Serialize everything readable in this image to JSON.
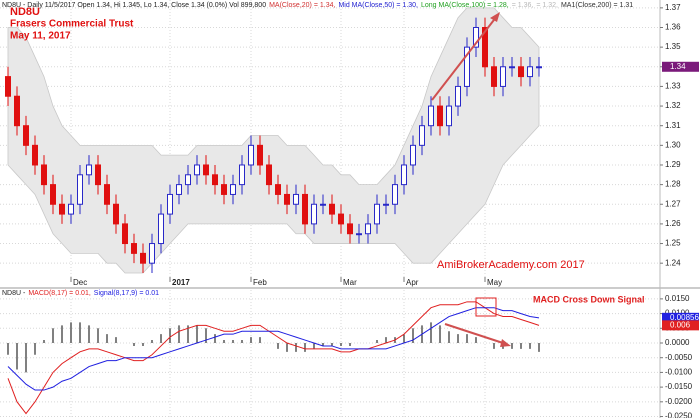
{
  "chart_data": [
    {
      "type": "candlestick",
      "title": "ND8U - Daily 11/5/2017 Open 1.34, Hi 1.345, Lo 1.34, Close 1.34 (0.0%) Vol 899,800",
      "header_items": [
        {
          "text": "MA(Close,20) = 1.34,",
          "color": "#d03030"
        },
        {
          "text": "Mid MA(Close,50) = 1.30,",
          "color": "#2020d0"
        },
        {
          "text": "Long MA(Close,100) = 1.28,",
          "color": "#20a020"
        },
        {
          "text": "= 1.36,",
          "color": "#b8b8b8"
        },
        {
          "text": "= 1.32,",
          "color": "#b8b8b8"
        },
        {
          "text": "MA1(Close,200) = 1.31",
          "color": "#303030"
        }
      ],
      "annotations": [
        {
          "text": "ND8U",
          "color": "#e01010"
        },
        {
          "text": "Frasers Commercial Trust",
          "color": "#e01010"
        },
        {
          "text": "May 11, 2017",
          "color": "#e01010"
        },
        {
          "text": "AmiBrokerAcademy.com  2017",
          "color": "#e01010"
        }
      ],
      "categories": [
        null,
        null,
        null,
        null,
        null,
        null,
        null,
        "Dec",
        null,
        null,
        null,
        null,
        null,
        null,
        null,
        null,
        null,
        null,
        "2017",
        null,
        null,
        null,
        null,
        null,
        null,
        null,
        null,
        "Feb",
        null,
        null,
        null,
        null,
        null,
        null,
        null,
        null,
        null,
        "Mar",
        null,
        null,
        null,
        null,
        null,
        null,
        "Apr",
        null,
        null,
        null,
        null,
        null,
        null,
        null,
        null,
        "May",
        null,
        null,
        null,
        null,
        null,
        null
      ],
      "open": [
        1.335,
        1.325,
        1.31,
        1.3,
        1.29,
        1.28,
        1.27,
        1.265,
        1.27,
        1.285,
        1.29,
        1.28,
        1.27,
        1.26,
        1.25,
        1.245,
        1.24,
        1.25,
        1.265,
        1.275,
        1.28,
        1.285,
        1.29,
        1.285,
        1.28,
        1.275,
        1.28,
        1.29,
        1.3,
        1.29,
        1.28,
        1.275,
        1.27,
        1.275,
        1.26,
        1.27,
        1.27,
        1.265,
        1.26,
        1.255,
        1.255,
        1.26,
        1.27,
        1.27,
        1.28,
        1.29,
        1.3,
        1.31,
        1.32,
        1.31,
        1.32,
        1.33,
        1.35,
        1.36,
        1.34,
        1.33,
        1.34,
        1.34,
        1.335,
        1.34
      ],
      "high": [
        1.34,
        1.33,
        1.315,
        1.305,
        1.295,
        1.285,
        1.275,
        1.275,
        1.29,
        1.295,
        1.295,
        1.285,
        1.275,
        1.265,
        1.255,
        1.25,
        1.255,
        1.27,
        1.28,
        1.285,
        1.29,
        1.295,
        1.295,
        1.29,
        1.285,
        1.285,
        1.295,
        1.305,
        1.305,
        1.295,
        1.285,
        1.28,
        1.28,
        1.28,
        1.275,
        1.275,
        1.275,
        1.27,
        1.265,
        1.26,
        1.265,
        1.275,
        1.275,
        1.285,
        1.295,
        1.305,
        1.315,
        1.325,
        1.325,
        1.325,
        1.335,
        1.355,
        1.365,
        1.365,
        1.345,
        1.345,
        1.345,
        1.345,
        1.345,
        1.345
      ],
      "low": [
        1.32,
        1.305,
        1.295,
        1.285,
        1.275,
        1.265,
        1.26,
        1.26,
        1.265,
        1.28,
        1.275,
        1.265,
        1.255,
        1.245,
        1.24,
        1.235,
        1.235,
        1.245,
        1.26,
        1.27,
        1.275,
        1.28,
        1.28,
        1.275,
        1.27,
        1.27,
        1.275,
        1.285,
        1.285,
        1.275,
        1.27,
        1.265,
        1.265,
        1.255,
        1.255,
        1.265,
        1.26,
        1.255,
        1.25,
        1.25,
        1.25,
        1.255,
        1.265,
        1.265,
        1.275,
        1.285,
        1.295,
        1.305,
        1.305,
        1.305,
        1.315,
        1.325,
        1.345,
        1.335,
        1.325,
        1.325,
        1.335,
        1.33,
        1.33,
        1.335
      ],
      "close": [
        1.325,
        1.31,
        1.3,
        1.29,
        1.28,
        1.27,
        1.265,
        1.27,
        1.285,
        1.29,
        1.28,
        1.27,
        1.26,
        1.25,
        1.245,
        1.24,
        1.25,
        1.265,
        1.275,
        1.28,
        1.285,
        1.29,
        1.285,
        1.28,
        1.275,
        1.28,
        1.29,
        1.3,
        1.29,
        1.28,
        1.275,
        1.27,
        1.275,
        1.26,
        1.27,
        1.27,
        1.265,
        1.26,
        1.255,
        1.255,
        1.26,
        1.27,
        1.27,
        1.28,
        1.29,
        1.3,
        1.31,
        1.32,
        1.31,
        1.32,
        1.33,
        1.35,
        1.36,
        1.34,
        1.33,
        1.34,
        1.34,
        1.335,
        1.34,
        1.34
      ],
      "up_color": "#2828c8",
      "down_color": "#e01010",
      "last_color": "#7a1a7a",
      "band": {
        "color": "#e8e8e8",
        "upper": [
          1.36,
          1.36,
          1.355,
          1.345,
          1.335,
          1.32,
          1.31,
          1.305,
          1.3,
          1.3,
          1.3,
          1.3,
          1.3,
          1.3,
          1.3,
          1.3,
          1.3,
          1.295,
          1.295,
          1.295,
          1.295,
          1.3,
          1.3,
          1.3,
          1.3,
          1.3,
          1.3,
          1.305,
          1.305,
          1.305,
          1.305,
          1.3,
          1.3,
          1.3,
          1.295,
          1.29,
          1.29,
          1.285,
          1.285,
          1.28,
          1.28,
          1.28,
          1.285,
          1.29,
          1.3,
          1.31,
          1.32,
          1.335,
          1.345,
          1.355,
          1.365,
          1.37,
          1.37,
          1.37,
          1.37,
          1.365,
          1.36,
          1.36,
          1.355,
          1.35
        ],
        "lower": [
          1.29,
          1.285,
          1.28,
          1.275,
          1.265,
          1.255,
          1.25,
          1.245,
          1.245,
          1.245,
          1.245,
          1.24,
          1.24,
          1.235,
          1.235,
          1.235,
          1.24,
          1.245,
          1.25,
          1.255,
          1.26,
          1.26,
          1.26,
          1.26,
          1.26,
          1.26,
          1.26,
          1.26,
          1.26,
          1.26,
          1.26,
          1.26,
          1.255,
          1.255,
          1.25,
          1.25,
          1.25,
          1.25,
          1.25,
          1.25,
          1.25,
          1.25,
          1.25,
          1.25,
          1.245,
          1.24,
          1.24,
          1.24,
          1.245,
          1.25,
          1.255,
          1.26,
          1.265,
          1.27,
          1.28,
          1.29,
          1.295,
          1.3,
          1.305,
          1.31
        ]
      },
      "ylim": [
        1.235,
        1.374
      ],
      "yticks": [
        1.24,
        1.25,
        1.26,
        1.27,
        1.28,
        1.29,
        {
          "value": 1.3,
          "label": "1.30"
        },
        1.31,
        1.32,
        1.33,
        1.34,
        1.35,
        1.36,
        1.37
      ],
      "grid": true
    },
    {
      "type": "macd",
      "title": "ND8U -",
      "series": [
        {
          "name": "MACD(8,17) = 0.01,",
          "color": "#e02020",
          "values": [
            -0.012,
            -0.02,
            -0.024,
            -0.02,
            -0.015,
            -0.01,
            -0.007,
            -0.005,
            -0.003,
            -0.002,
            -0.002,
            -0.003,
            -0.004,
            -0.005,
            -0.006,
            -0.006,
            -0.004,
            -0.001,
            0.002,
            0.004,
            0.005,
            0.006,
            0.006,
            0.005,
            0.004,
            0.004,
            0.005,
            0.006,
            0.006,
            0.004,
            0.002,
            0,
            -0.001,
            -0.002,
            -0.002,
            -0.002,
            -0.002,
            -0.003,
            -0.003,
            -0.002,
            -0.002,
            -0.001,
            0,
            0.001,
            0.003,
            0.006,
            0.009,
            0.012,
            0.013,
            0.013,
            0.013,
            0.014,
            0.014,
            0.012,
            0.01,
            0.009,
            0.009,
            0.008,
            0.007,
            0.006
          ]
        },
        {
          "name": "Signal(8,17,9) = 0.01",
          "color": "#2020e0",
          "values": [
            -0.008,
            -0.011,
            -0.014,
            -0.016,
            -0.016,
            -0.015,
            -0.013,
            -0.012,
            -0.01,
            -0.008,
            -0.007,
            -0.006,
            -0.006,
            -0.005,
            -0.005,
            -0.005,
            -0.005,
            -0.004,
            -0.003,
            -0.002,
            -0.001,
            0,
            0.001,
            0.002,
            0.003,
            0.003,
            0.004,
            0.004,
            0.004,
            0.004,
            0.004,
            0.003,
            0.002,
            0.001,
            0,
            -0.001,
            -0.001,
            -0.002,
            -0.002,
            -0.002,
            -0.002,
            -0.002,
            -0.002,
            -0.001,
            0,
            0.001,
            0.003,
            0.005,
            0.007,
            0.009,
            0.01,
            0.011,
            0.012,
            0.012,
            0.012,
            0.011,
            0.011,
            0.01,
            0.009,
            0.00856
          ]
        }
      ],
      "histogram": {
        "color": "#000000",
        "values": [
          -0.004,
          -0.009,
          -0.01,
          -0.004,
          0.001,
          0.005,
          0.006,
          0.007,
          0.007,
          0.006,
          0.005,
          0.003,
          0.002,
          0,
          -0.001,
          -0.001,
          0.001,
          0.003,
          0.005,
          0.006,
          0.006,
          0.006,
          0.005,
          0.003,
          0.001,
          0.001,
          0.001,
          0.002,
          0.002,
          0,
          -0.002,
          -0.003,
          -0.003,
          -0.003,
          -0.002,
          -0.001,
          -0.001,
          -0.001,
          -0.001,
          0,
          0,
          0.001,
          0.002,
          0.002,
          0.003,
          0.005,
          0.006,
          0.007,
          0.006,
          0.004,
          0.003,
          0.003,
          0.002,
          0,
          -0.002,
          -0.002,
          -0.002,
          -0.002,
          -0.002,
          -0.003
        ]
      },
      "annotations": [
        {
          "text": "MACD Cross Down Signal",
          "color": "#e02020"
        }
      ],
      "ylim": [
        -0.0255,
        0.017
      ],
      "yticks": [
        {
          "value": 0.015,
          "label": "0.0150"
        },
        {
          "value": 0.01,
          "label": "0.0100"
        },
        {
          "value": 0.005,
          "label": "0.0050"
        },
        {
          "value": 0,
          "label": "0.0000"
        },
        {
          "value": -0.005,
          "label": "-0.0050"
        },
        {
          "value": -0.01,
          "label": "-0.0100"
        },
        {
          "value": -0.015,
          "label": "-0.0150"
        },
        {
          "value": -0.02,
          "label": "-0.0200"
        },
        {
          "value": -0.025,
          "label": "-0.0250"
        }
      ],
      "grid": true
    }
  ]
}
